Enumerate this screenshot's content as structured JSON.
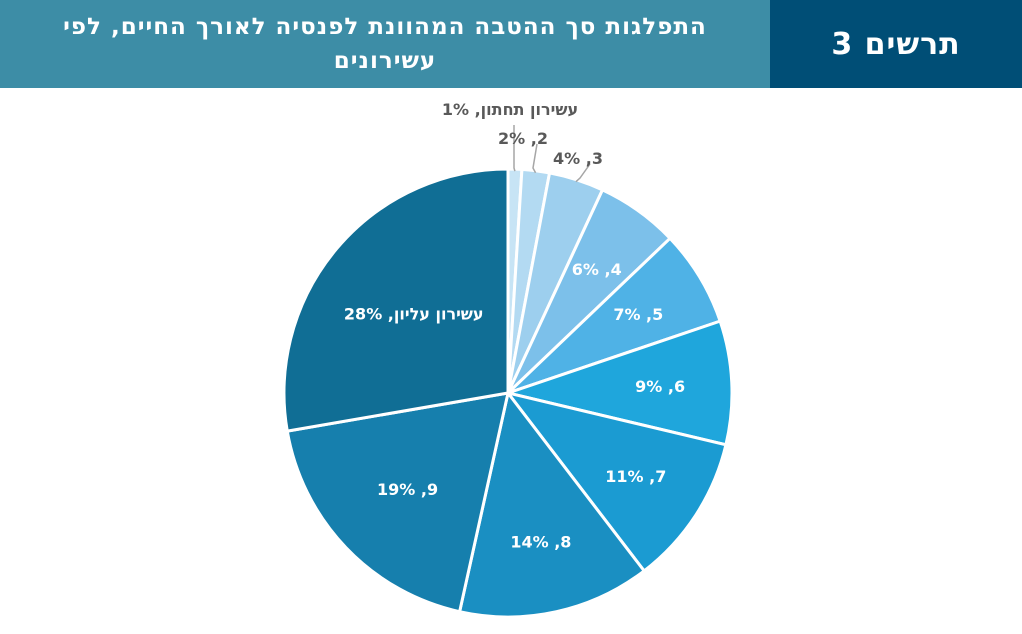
{
  "header": {
    "title": "התפלגות סך ההטבה המהוונת לפנסיה לאורך החיים, לפי עשירונים",
    "figure_label": "תרשים 3"
  },
  "chart_data": {
    "type": "pie",
    "start_angle_deg": 0,
    "direction": "clockwise",
    "slices": [
      {
        "label": "עשירון תחתון, 1%",
        "value": 1,
        "color": "#c7e4f5",
        "label_color": "#595959",
        "label_outside": true
      },
      {
        "label": "2, 2%",
        "value": 2,
        "color": "#b3daf2",
        "label_color": "#595959",
        "label_outside": true
      },
      {
        "label": "3, 4%",
        "value": 4,
        "color": "#9dcfee",
        "label_color": "#595959",
        "label_outside": true
      },
      {
        "label": "4, 6%",
        "value": 6,
        "color": "#7cc0ea",
        "label_color": "#ffffff",
        "label_outside": false
      },
      {
        "label": "5, 7%",
        "value": 7,
        "color": "#4fb2e6",
        "label_color": "#ffffff",
        "label_outside": false
      },
      {
        "label": "6, 9%",
        "value": 9,
        "color": "#1fa6dc",
        "label_color": "#ffffff",
        "label_outside": false
      },
      {
        "label": "7, 11%",
        "value": 11,
        "color": "#1b9bd2",
        "label_color": "#ffffff",
        "label_outside": false
      },
      {
        "label": "8, 14%",
        "value": 14,
        "color": "#1a8fc2",
        "label_color": "#ffffff",
        "label_outside": false
      },
      {
        "label": "9, 19%",
        "value": 19,
        "color": "#167fad",
        "label_color": "#ffffff",
        "label_outside": false
      },
      {
        "label": "עשירון עליון, 28%",
        "value": 28,
        "color": "#106e95",
        "label_color": "#ffffff",
        "label_outside": false
      }
    ]
  }
}
